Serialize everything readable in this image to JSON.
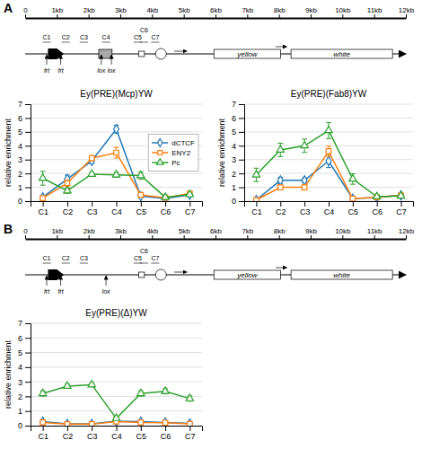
{
  "chart_data": [
    {
      "type": "diagram",
      "title": "A",
      "xlim": [
        0,
        12
      ],
      "xticks": [
        0,
        {
          "value": 1,
          "label": "1kb"
        },
        {
          "value": 2,
          "label": "2kb"
        },
        {
          "value": 3,
          "label": "3kb"
        },
        {
          "value": 4,
          "label": "4kb"
        },
        {
          "value": 5,
          "label": "5kb"
        },
        {
          "value": 6,
          "label": "6kb"
        },
        {
          "value": 7,
          "label": "7kb"
        },
        {
          "value": 8,
          "label": "8kb"
        },
        {
          "value": 9,
          "label": "9kb"
        },
        {
          "value": 10,
          "label": "10kb"
        },
        {
          "value": 11,
          "label": "11kb"
        },
        {
          "value": 12,
          "label": "12kb"
        }
      ],
      "annotations": [
        "C1",
        "C2",
        "C3",
        "C4",
        "C5",
        "C6",
        "C7",
        "frt",
        "frt",
        "lox",
        "lox",
        "yellow",
        "white"
      ]
    },
    {
      "type": "line",
      "title": "Ey(PRE)(Mcp)YW",
      "categories": [
        "C1",
        "C2",
        "C3",
        "C4",
        "C5",
        "C6",
        "C7"
      ],
      "series": [
        {
          "name": "dCTCF",
          "marker": "diamond",
          "values": [
            0.28,
            1.6,
            2.9,
            5.2,
            0.35,
            0.2,
            0.45
          ],
          "errors": [
            0.12,
            0.28,
            0.18,
            0.28,
            0.1,
            0.08,
            0.1
          ]
        },
        {
          "name": "ENY2",
          "marker": "square",
          "values": [
            0.22,
            1.3,
            3.1,
            3.5,
            0.45,
            0.25,
            0.55
          ],
          "errors": [
            0.08,
            0.22,
            0.18,
            0.38,
            0.12,
            0.08,
            0.12
          ]
        },
        {
          "name": "Pc",
          "marker": "triangle",
          "values": [
            1.65,
            0.75,
            1.95,
            1.9,
            1.85,
            0.28,
            0.48
          ],
          "errors": [
            0.5,
            0.18,
            0.12,
            0.18,
            0.28,
            0.08,
            0.08
          ]
        }
      ],
      "ylim": [
        0,
        7
      ],
      "yticks": [
        0,
        1,
        2,
        3,
        4,
        5,
        6,
        7
      ],
      "ylabel": "relative enrichment",
      "grid": true,
      "legend": "right"
    },
    {
      "type": "line",
      "title": "Ey(PRE)(Fab8)YW",
      "categories": [
        "C1",
        "C2",
        "C3",
        "C4",
        "C5",
        "C6",
        "C7"
      ],
      "series": [
        {
          "marker": "diamond",
          "values": [
            0.08,
            1.5,
            1.5,
            2.9,
            0.18,
            0.28,
            0.42
          ],
          "errors": [
            0.08,
            0.22,
            0.18,
            0.48,
            0.08,
            0.08,
            0.08
          ]
        },
        {
          "marker": "square",
          "values": [
            0.08,
            1.0,
            1.0,
            3.6,
            0.18,
            0.28,
            0.42
          ],
          "errors": [
            0.08,
            0.18,
            0.18,
            0.38,
            0.08,
            0.08,
            0.08
          ]
        },
        {
          "marker": "triangle",
          "values": [
            1.9,
            3.7,
            4.0,
            5.1,
            1.6,
            0.32,
            0.38
          ],
          "errors": [
            0.48,
            0.48,
            0.48,
            0.58,
            0.38,
            0.08,
            0.08
          ]
        }
      ],
      "ylim": [
        0,
        7
      ],
      "yticks": [
        0,
        1,
        2,
        3,
        4,
        5,
        6,
        7
      ],
      "ylabel": "relative enrichment",
      "grid": true
    },
    {
      "type": "diagram",
      "title": "B",
      "xlim": [
        0,
        12
      ],
      "xticks": [
        0,
        {
          "value": 1,
          "label": "1kb"
        },
        {
          "value": 2,
          "label": "2kb"
        },
        {
          "value": 3,
          "label": "3kb"
        },
        {
          "value": 4,
          "label": "4kb"
        },
        {
          "value": 5,
          "label": "5kb"
        },
        {
          "value": 6,
          "label": "6kb"
        },
        {
          "value": 7,
          "label": "7kb"
        },
        {
          "value": 8,
          "label": "8kb"
        },
        {
          "value": 9,
          "label": "9kb"
        },
        {
          "value": 10,
          "label": "10kb"
        },
        {
          "value": 11,
          "label": "11kb"
        },
        {
          "value": 12,
          "label": "12kb"
        }
      ],
      "annotations": [
        "C1",
        "C2",
        "C3",
        "C5",
        "C6",
        "C7",
        "frt",
        "frt",
        "lox",
        "yellow",
        "white"
      ]
    },
    {
      "type": "line",
      "title": "Ey(PRE)(Δ)YW",
      "categories": [
        "C1",
        "C2",
        "C3",
        "C4",
        "C5",
        "C6",
        "C7"
      ],
      "series": [
        {
          "marker": "diamond",
          "values": [
            0.28,
            0.12,
            0.12,
            0.3,
            0.28,
            0.22,
            0.15
          ],
          "errors": [
            0.08,
            0.06,
            0.04,
            0.08,
            0.08,
            0.08,
            0.04
          ]
        },
        {
          "marker": "square",
          "values": [
            0.22,
            0.1,
            0.1,
            0.28,
            0.22,
            0.2,
            0.12
          ],
          "errors": [
            0.06,
            0.04,
            0.04,
            0.08,
            0.06,
            0.04,
            0.04
          ]
        },
        {
          "marker": "triangle",
          "values": [
            2.2,
            2.7,
            2.8,
            0.5,
            2.2,
            2.35,
            1.85
          ],
          "errors": [
            0.18,
            0.14,
            0.12,
            0.08,
            0.18,
            0.18,
            0.18
          ]
        }
      ],
      "ylim": [
        0,
        7
      ],
      "yticks": [
        0,
        1,
        2,
        3,
        4,
        5,
        6,
        7
      ],
      "ylabel": "relative enrichment",
      "grid": true
    }
  ]
}
